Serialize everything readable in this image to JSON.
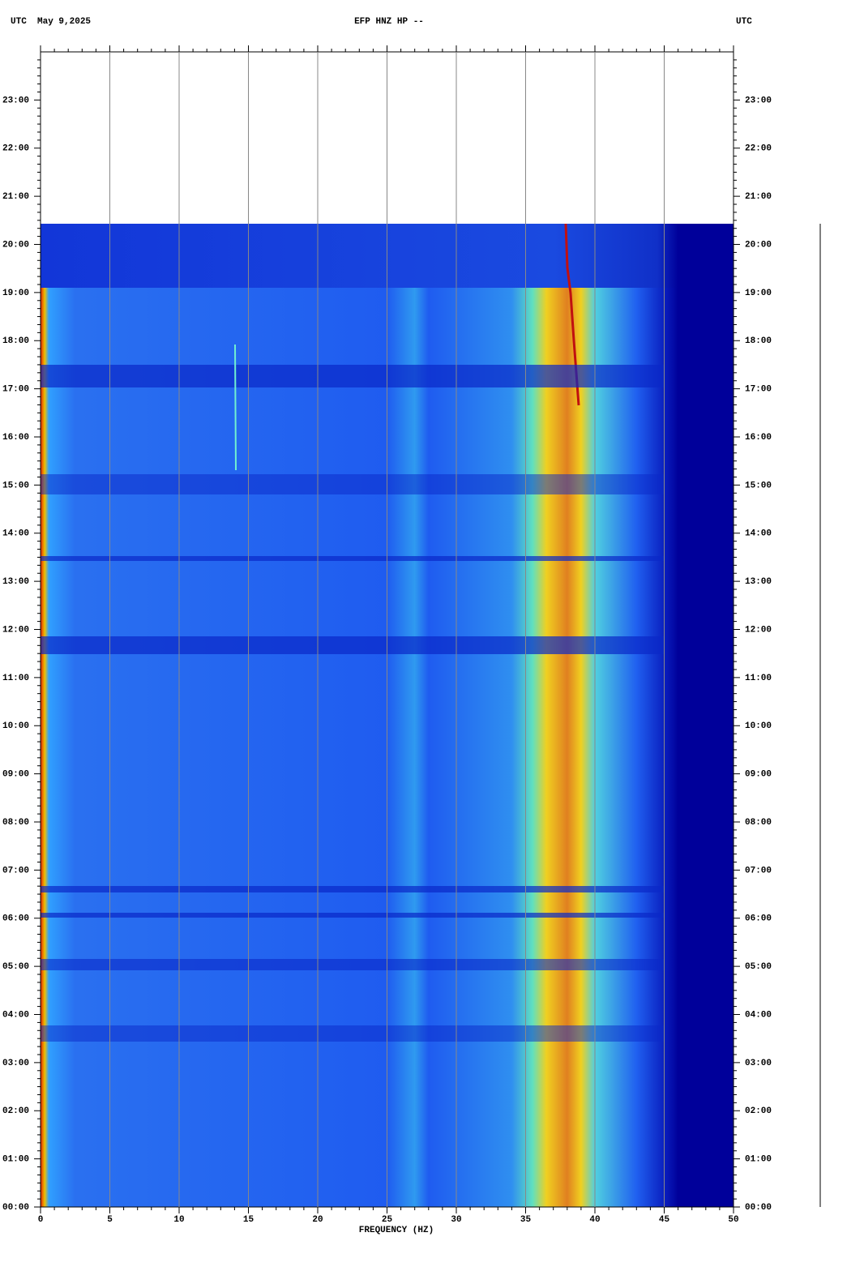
{
  "chart_data": {
    "type": "spectrogram",
    "title": "EFP HNZ HP --",
    "header_left": "UTC  May 9,2025",
    "header_right": "UTC",
    "x_label": "FREQUENCY (HZ)",
    "xlim": [
      0,
      50
    ],
    "xticks": [
      0,
      5,
      10,
      15,
      20,
      25,
      30,
      35,
      40,
      45,
      50
    ],
    "ylim": [
      0,
      24
    ],
    "yticks": [
      {
        "value": 0,
        "label": "00:00"
      },
      {
        "value": 1,
        "label": "01:00"
      },
      {
        "value": 2,
        "label": "02:00"
      },
      {
        "value": 3,
        "label": "03:00"
      },
      {
        "value": 4,
        "label": "04:00"
      },
      {
        "value": 5,
        "label": "05:00"
      },
      {
        "value": 6,
        "label": "06:00"
      },
      {
        "value": 7,
        "label": "07:00"
      },
      {
        "value": 8,
        "label": "08:00"
      },
      {
        "value": 9,
        "label": "09:00"
      },
      {
        "value": 10,
        "label": "10:00"
      },
      {
        "value": 11,
        "label": "11:00"
      },
      {
        "value": 12,
        "label": "12:00"
      },
      {
        "value": 13,
        "label": "13:00"
      },
      {
        "value": 14,
        "label": "14:00"
      },
      {
        "value": 15,
        "label": "15:00"
      },
      {
        "value": 16,
        "label": "16:00"
      },
      {
        "value": 17,
        "label": "17:00"
      },
      {
        "value": 18,
        "label": "18:00"
      },
      {
        "value": 19,
        "label": "19:00"
      },
      {
        "value": 20,
        "label": "20:00"
      },
      {
        "value": 21,
        "label": "21:00"
      },
      {
        "value": 22,
        "label": "22:00"
      },
      {
        "value": 23,
        "label": "23:00"
      }
    ],
    "grid": true
  }
}
